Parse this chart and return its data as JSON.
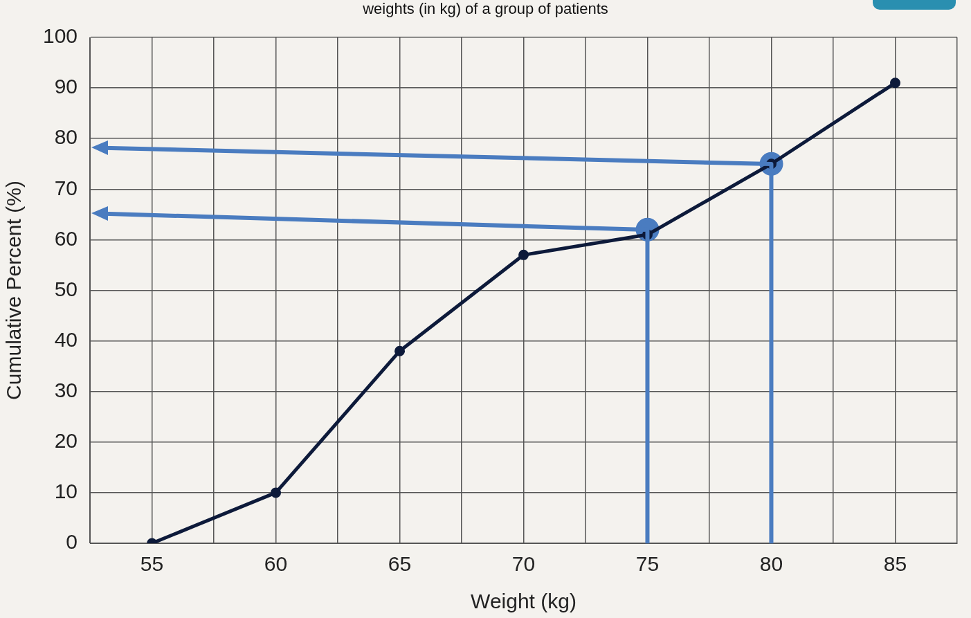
{
  "chart_data": {
    "type": "line",
    "title": "weights (in kg) of a group of patients",
    "xlabel": "Weight (kg)",
    "ylabel": "Cumulative Percent (%)",
    "x": [
      55,
      60,
      65,
      70,
      75,
      80,
      85
    ],
    "series": [
      {
        "color": "#0d1a3a",
        "marker": "circle",
        "values": [
          0,
          10,
          38,
          57,
          61,
          75,
          91
        ]
      },
      {
        "type": "scatter",
        "color": "#4a7cc0",
        "marker": "circle",
        "x": [
          75,
          80
        ],
        "values": [
          62,
          75
        ]
      }
    ],
    "xlim": [
      52.5,
      87.5
    ],
    "xticks": [
      {
        "value": 52.5,
        "label": null
      },
      55,
      {
        "value": 57.5,
        "label": null
      },
      60,
      {
        "value": 62.5,
        "label": null
      },
      65,
      {
        "value": 67.5,
        "label": null
      },
      70,
      {
        "value": 72.5,
        "label": null
      },
      75,
      {
        "value": 77.5,
        "label": null
      },
      80,
      {
        "value": 82.5,
        "label": null
      },
      85,
      {
        "value": 87.5,
        "label": null
      }
    ],
    "ylim": [
      0,
      100
    ],
    "yticks": [
      0,
      10,
      20,
      30,
      40,
      50,
      60,
      70,
      80,
      90,
      100
    ],
    "grid": true,
    "legend": false,
    "line_style": "solid"
  }
}
